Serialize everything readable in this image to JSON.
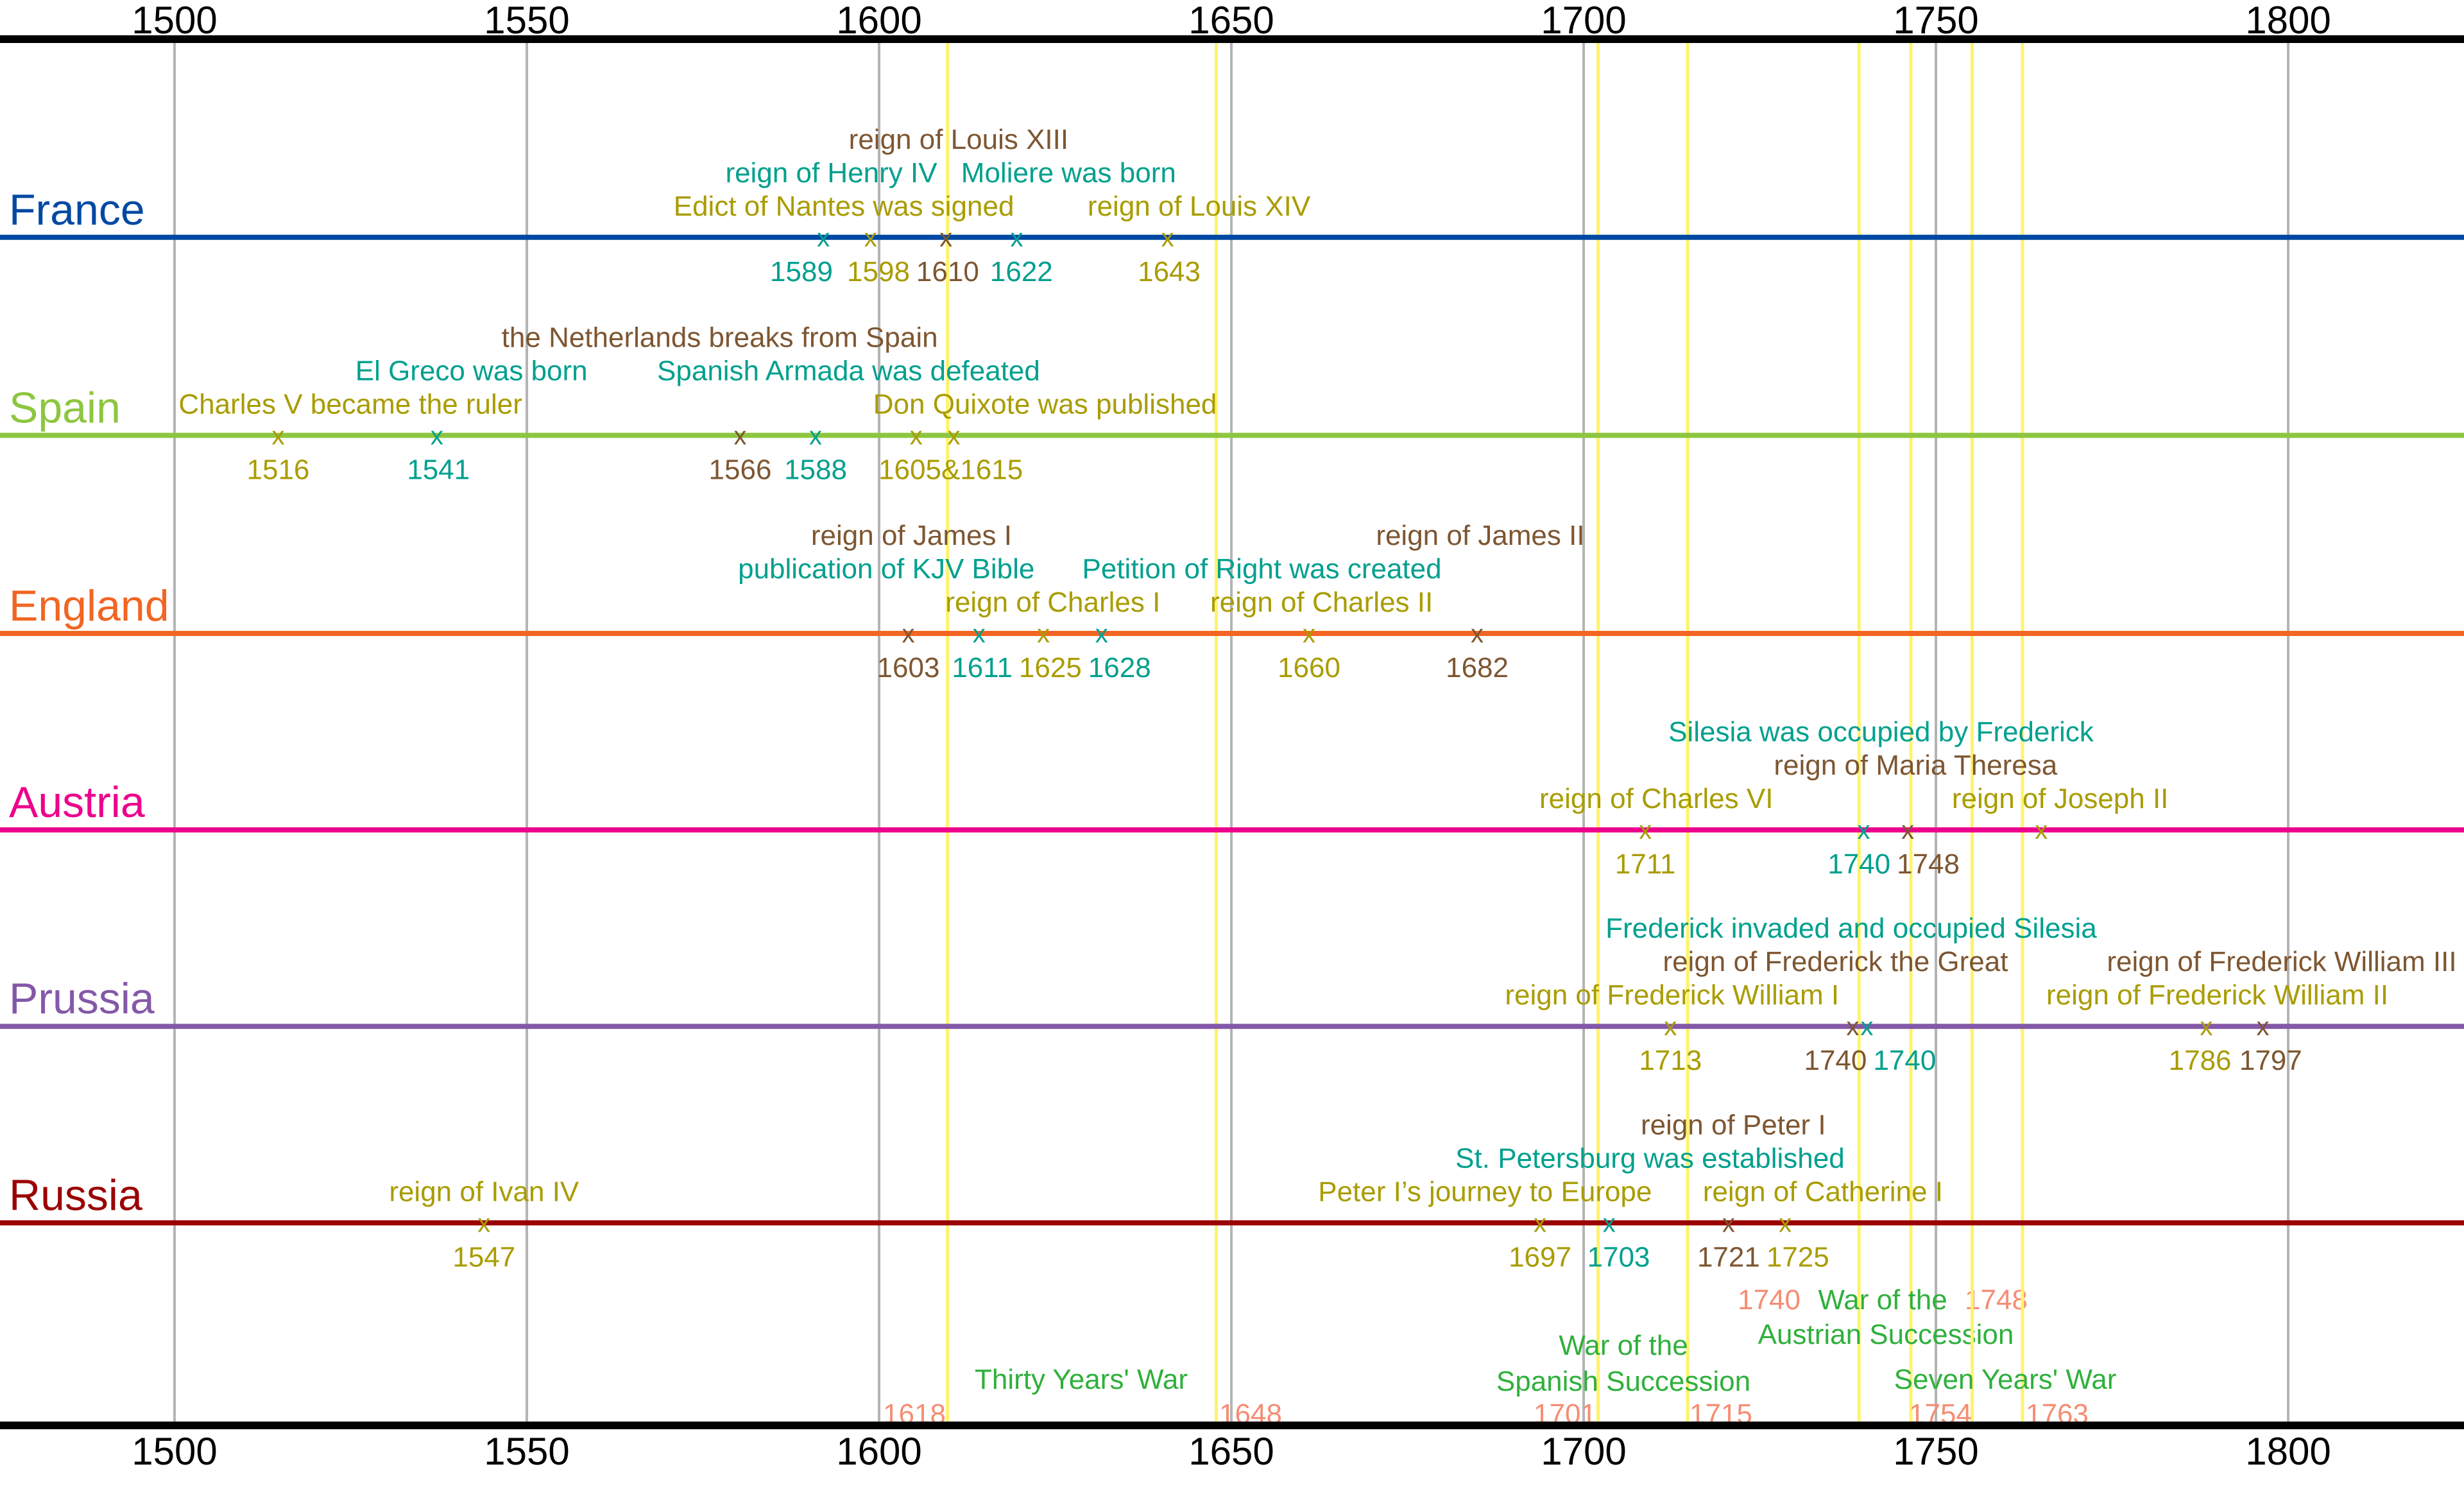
{
  "chart_data": {
    "type": "timeline",
    "xlim": [
      1475,
      1825
    ],
    "x_ticks": [
      1500,
      1550,
      1600,
      1650,
      1700,
      1750,
      1800
    ],
    "grid": true,
    "colors": {
      "olive": "#a99c00",
      "teal": "#00a08e",
      "brown": "#7d5631",
      "war_year": "#f58d74",
      "war_label": "#2fb03c",
      "war_line": "#fff36a",
      "grid": "#b4b4b4",
      "axis": "#000000"
    },
    "countries": [
      {
        "name": "France",
        "color": "#0049a3",
        "events": [
          {
            "year": "1589",
            "label": "reign of Henry IV",
            "tone": "teal"
          },
          {
            "year": "1598",
            "label": "Edict of Nantes was signed",
            "tone": "olive"
          },
          {
            "year": "1610",
            "label": "reign of Louis XIII",
            "tone": "brown"
          },
          {
            "year": "1622",
            "label": "Moliere was born",
            "tone": "teal"
          },
          {
            "year": "1643",
            "label": "reign of Louis XIV",
            "tone": "olive"
          }
        ]
      },
      {
        "name": "Spain",
        "color": "#8dc63f",
        "events": [
          {
            "year": "1516",
            "label": "Charles V became the ruler",
            "tone": "olive"
          },
          {
            "year": "1541",
            "label": "El Greco was born",
            "tone": "teal"
          },
          {
            "year": "1566",
            "label": "the Netherlands breaks from Spain",
            "tone": "brown"
          },
          {
            "year": "1588",
            "label": "Spanish Armada was defeated",
            "tone": "teal"
          },
          {
            "year": "1605&1615",
            "label": "Don Quixote was published",
            "tone": "olive"
          }
        ]
      },
      {
        "name": "England",
        "color": "#f26522",
        "events": [
          {
            "year": "1603",
            "label": "reign of James I",
            "tone": "brown"
          },
          {
            "year": "1611",
            "label": "publication of KJV Bible",
            "tone": "teal"
          },
          {
            "year": "1625",
            "label": "reign of Charles I",
            "tone": "olive"
          },
          {
            "year": "1628",
            "label": "Petition of Right was created",
            "tone": "teal"
          },
          {
            "year": "1660",
            "label": "reign of Charles II",
            "tone": "olive"
          },
          {
            "year": "1682",
            "label": "reign of James II",
            "tone": "brown"
          }
        ]
      },
      {
        "name": "Austria",
        "color": "#ec008c",
        "events": [
          {
            "year": "1711",
            "label": "reign of Charles VI",
            "tone": "olive"
          },
          {
            "year": "1740",
            "label": "Silesia was occupied by Frederick",
            "tone": "teal"
          },
          {
            "year": "1748",
            "label": "reign of Maria Theresa",
            "tone": "brown"
          },
          {
            "year": "",
            "label": "reign of Joseph II",
            "tone": "olive"
          }
        ]
      },
      {
        "name": "Prussia",
        "color": "#8458a8",
        "events": [
          {
            "year": "1713",
            "label": "reign of Frederick William I",
            "tone": "olive"
          },
          {
            "year": "1740",
            "label": "reign of Frederick the Great",
            "tone": "brown"
          },
          {
            "year": "1740",
            "label": "Frederick invaded and occupied Silesia",
            "tone": "teal"
          },
          {
            "year": "1786",
            "label": "reign of Frederick William II",
            "tone": "olive"
          },
          {
            "year": "1797",
            "label": "reign of Frederick William III",
            "tone": "brown"
          }
        ]
      },
      {
        "name": "Russia",
        "color": "#9b0000",
        "events": [
          {
            "year": "1547",
            "label": "reign of Ivan IV",
            "tone": "olive"
          },
          {
            "year": "1697",
            "label": "Peter I’s journey to Europe",
            "tone": "olive"
          },
          {
            "year": "1703",
            "label": "St. Petersburg was established",
            "tone": "teal"
          },
          {
            "year": "1721",
            "label": "reign of Peter I",
            "tone": "brown"
          },
          {
            "year": "1725",
            "label": "reign of Catherine I",
            "tone": "olive"
          }
        ]
      }
    ],
    "wars": [
      {
        "title": [
          "Thirty Years' War"
        ],
        "start": "1618",
        "end": "1648"
      },
      {
        "title": [
          "War of the",
          "Spanish Succession"
        ],
        "start": "1701",
        "end": "1715"
      },
      {
        "title": [
          "War of the",
          "Austrian Succession"
        ],
        "start": "1740",
        "end": "1748"
      },
      {
        "title": [
          "Seven Years' War"
        ],
        "start": "1754",
        "end": "1763"
      }
    ]
  }
}
